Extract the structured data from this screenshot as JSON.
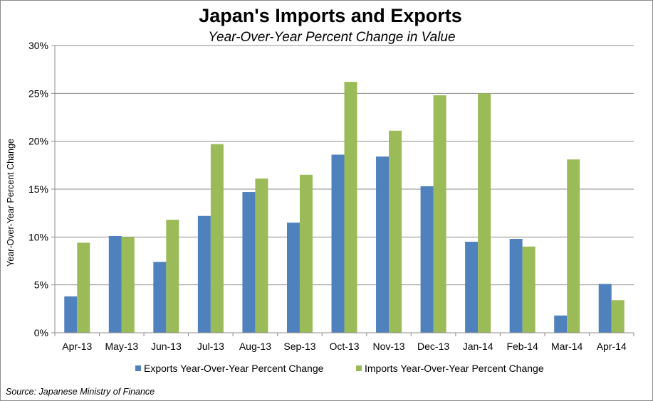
{
  "chart_data": {
    "type": "bar",
    "title": "Japan's Imports and Exports",
    "subtitle": "Year-Over-Year Percent Change in Value",
    "ylabel": "Year-Over-Year Percent Change",
    "xlabel": "",
    "ylim": [
      0,
      30
    ],
    "yticks": [
      0,
      5,
      10,
      15,
      20,
      25,
      30
    ],
    "ytick_labels": [
      "0%",
      "5%",
      "10%",
      "15%",
      "20%",
      "25%",
      "30%"
    ],
    "grid": true,
    "legend_position": "bottom",
    "categories": [
      "Apr-13",
      "May-13",
      "Jun-13",
      "Jul-13",
      "Aug-13",
      "Sep-13",
      "Oct-13",
      "Nov-13",
      "Dec-13",
      "Jan-14",
      "Feb-14",
      "Mar-14",
      "Apr-14"
    ],
    "series": [
      {
        "name": "Exports Year-Over-Year Percent Change",
        "color": "#4f81bd",
        "values": [
          3.8,
          10.1,
          7.4,
          12.2,
          14.7,
          11.5,
          18.6,
          18.4,
          15.3,
          9.5,
          9.8,
          1.8,
          5.1
        ]
      },
      {
        "name": "Imports Year-Over-Year Percent Change",
        "color": "#9bbb59",
        "values": [
          9.4,
          10.0,
          11.8,
          19.7,
          16.1,
          16.5,
          26.2,
          21.1,
          24.8,
          25.0,
          9.0,
          18.1,
          3.4
        ]
      }
    ],
    "source": "Source: Japanese Ministry of Finance"
  }
}
